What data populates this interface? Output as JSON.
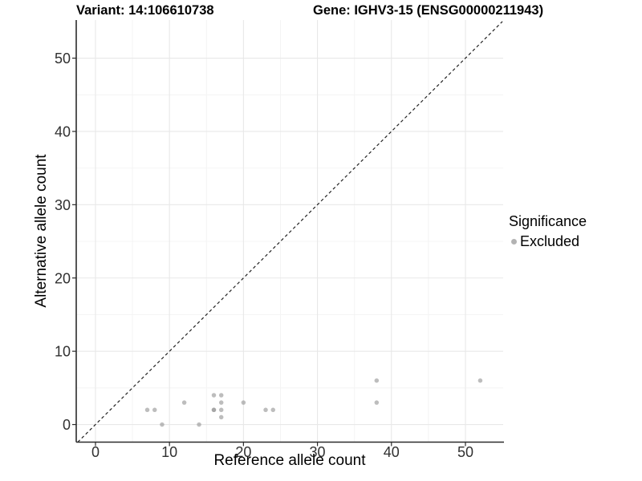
{
  "titles": {
    "variant": "Variant: 14:106610738",
    "gene": "Gene: IGHV3-15 (ENSG00000211943)"
  },
  "chart_data": {
    "type": "scatter",
    "xlabel": "Reference allele count",
    "ylabel": "Alternative allele count",
    "xlim": [
      -2.6,
      55.1
    ],
    "ylim": [
      -2.4,
      55.2
    ],
    "x_ticks": [
      0,
      10,
      20,
      30,
      40,
      50
    ],
    "y_ticks": [
      0,
      10,
      20,
      30,
      40,
      50
    ],
    "x_minor_ticks": [
      5,
      15,
      25,
      35,
      45
    ],
    "y_minor_ticks": [
      5,
      15,
      25,
      35,
      45
    ],
    "grid": true,
    "identity_line": {
      "style": "dashed",
      "color": "#222222",
      "from": -2.4,
      "to": 55.0
    },
    "series": [
      {
        "name": "Excluded",
        "color": "#999999",
        "opacity": 0.65,
        "points": [
          {
            "x": 7,
            "y": 2
          },
          {
            "x": 8,
            "y": 2
          },
          {
            "x": 9,
            "y": 0
          },
          {
            "x": 12,
            "y": 3
          },
          {
            "x": 14,
            "y": 0
          },
          {
            "x": 16,
            "y": 4
          },
          {
            "x": 17,
            "y": 4
          },
          {
            "x": 16,
            "y": 2
          },
          {
            "x": 16,
            "y": 2
          },
          {
            "x": 17,
            "y": 3
          },
          {
            "x": 17,
            "y": 2
          },
          {
            "x": 17,
            "y": 1
          },
          {
            "x": 20,
            "y": 3
          },
          {
            "x": 23,
            "y": 2
          },
          {
            "x": 24,
            "y": 2
          },
          {
            "x": 38,
            "y": 6
          },
          {
            "x": 38,
            "y": 3
          },
          {
            "x": 52,
            "y": 6
          }
        ]
      }
    ],
    "legend": {
      "title": "Significance",
      "position": "right",
      "entries": [
        {
          "label": "Excluded",
          "color": "#b3b3b3"
        }
      ]
    },
    "colors": {
      "major_grid": "#e8e8e8",
      "minor_grid": "#f4f4f4",
      "axis_line": "#2b2b2b",
      "tick_label": "#303030",
      "point": "#999999"
    }
  }
}
